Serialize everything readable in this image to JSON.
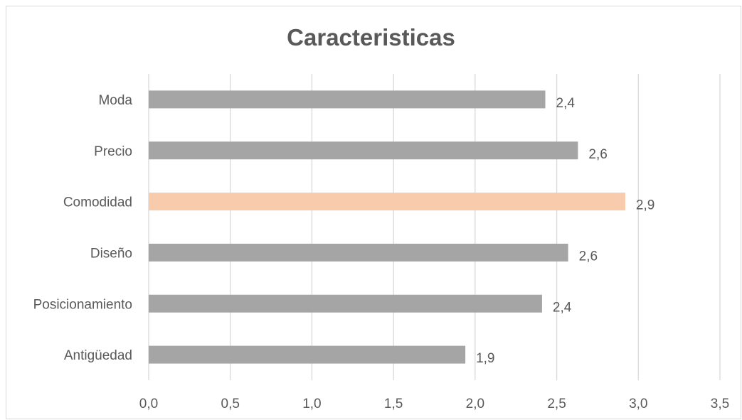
{
  "chart_data": {
    "type": "bar",
    "orientation": "horizontal",
    "title": "Caracteristicas",
    "categories": [
      "Moda",
      "Precio",
      "Comodidad",
      "Diseño",
      "Posicionamiento",
      "Antigüedad"
    ],
    "values": [
      2.43,
      2.63,
      2.92,
      2.57,
      2.41,
      1.94
    ],
    "data_labels": [
      "2,4",
      "2,6",
      "2,9",
      "2,6",
      "2,4",
      "1,9"
    ],
    "xlim": [
      0,
      3.5
    ],
    "x_ticks": [
      0,
      0.5,
      1,
      1.5,
      2,
      2.5,
      3,
      3.5
    ],
    "x_tick_labels": [
      "0,0",
      "0,5",
      "1,0",
      "1,5",
      "2,0",
      "2,5",
      "3,0",
      "3,5"
    ],
    "grid": "vertical",
    "legend": "none",
    "colors": {
      "bar": "#a5a5a5",
      "highlight": "#f8cbad",
      "highlight_category": "Comodidad",
      "grid": "#d9d9d9",
      "text": "#595959"
    }
  }
}
